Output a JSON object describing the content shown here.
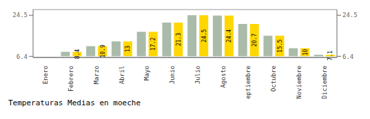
{
  "chart_data": {
    "type": "bar",
    "title": "Temperaturas Medias en moeche",
    "categories": [
      "Enero",
      "Febrero",
      "Marzo",
      "Abril",
      "Mayo",
      "Junio",
      "Julio",
      "Agosto",
      "Septiembre",
      "Octubre",
      "Noviembre",
      "Diciembre"
    ],
    "series": [
      {
        "color": "#AABBAA",
        "values": [
          6.4,
          8.4,
          10.9,
          13.0,
          17.2,
          21.3,
          24.5,
          24.4,
          20.7,
          15.5,
          10.0,
          7.1
        ]
      },
      {
        "color": "#FFD700",
        "values": [
          6.4,
          8.4,
          10.9,
          13.0,
          17.2,
          21.3,
          24.5,
          24.4,
          20.7,
          15.5,
          10.0,
          7.1
        ],
        "data_labels": true
      }
    ],
    "baseline": 6.4,
    "ylim": [
      5.9,
      27.0
    ],
    "yticks": [
      6.4,
      24.5
    ],
    "grid": true
  }
}
